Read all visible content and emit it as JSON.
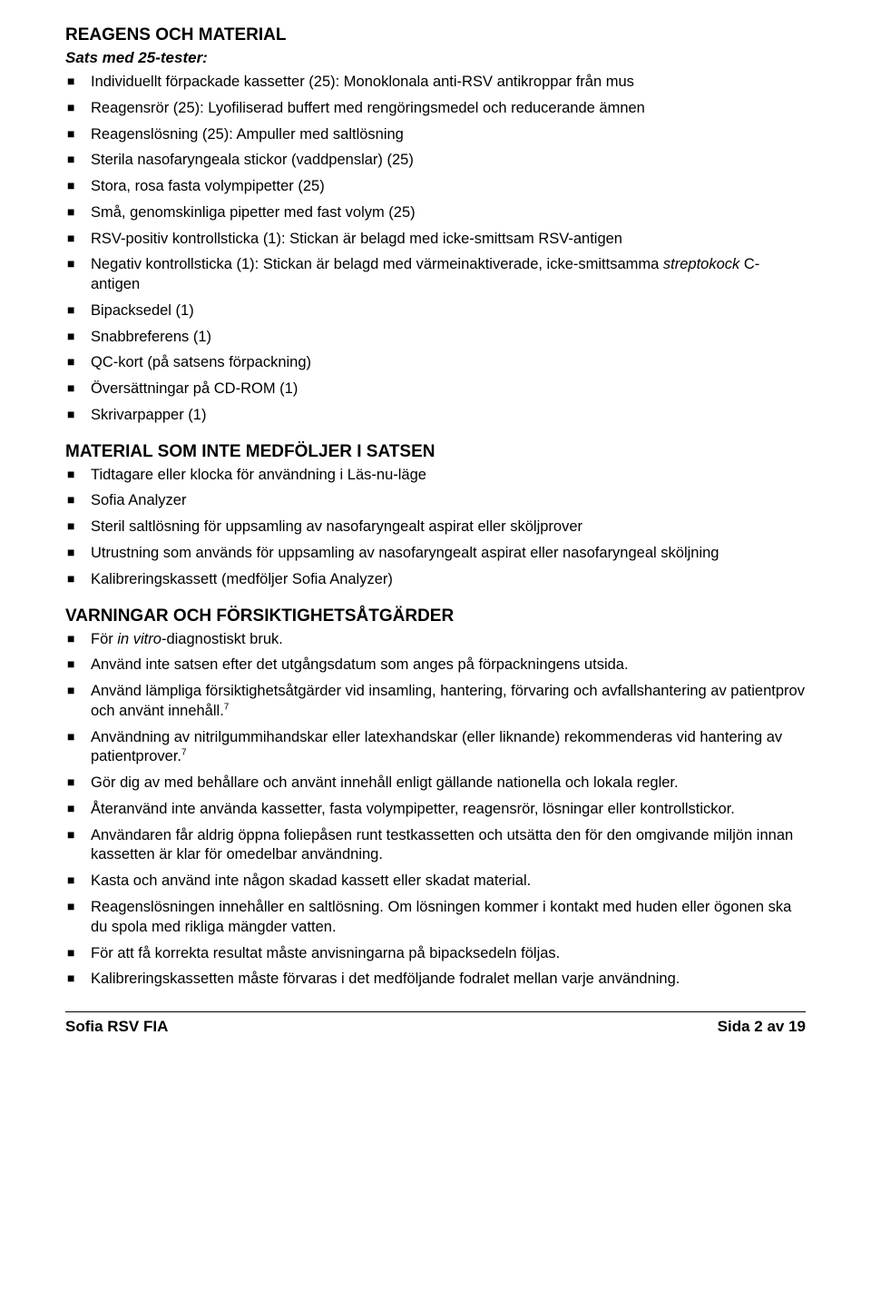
{
  "section1": {
    "title": "REAGENS OCH MATERIAL",
    "subtitle": "Sats med 25-tester:",
    "items": [
      "Individuellt förpackade kassetter (25): Monoklonala anti-RSV antikroppar från mus",
      "Reagensrör (25): Lyofiliserad buffert med rengöringsmedel och reducerande ämnen",
      "Reagenslösning (25): Ampuller med saltlösning",
      "Sterila nasofaryngeala stickor (vaddpenslar) (25)",
      "Stora, rosa fasta volympipetter (25)",
      "Små, genomskinliga pipetter med fast volym (25)",
      "RSV-positiv kontrollsticka (1): Stickan är belagd med icke-smittsam RSV-antigen",
      "Negativ kontrollsticka (1): Stickan är belagd med värmeinaktiverade, icke-smittsamma <span class=\"ital\">streptokock</span> C-antigen",
      "Bipacksedel (1)",
      "Snabbreferens (1)",
      "QC-kort (på satsens förpackning)",
      "Översättningar på CD-ROM (1)",
      "Skrivarpapper (1)"
    ]
  },
  "section2": {
    "title": "MATERIAL SOM INTE MEDFÖLJER I SATSEN",
    "items": [
      "Tidtagare eller klocka för användning i Läs-nu-läge",
      "Sofia Analyzer",
      "Steril saltlösning för uppsamling av nasofaryngealt aspirat eller sköljprover",
      "Utrustning som används för uppsamling av nasofaryngealt aspirat eller nasofaryngeal sköljning",
      "Kalibreringskassett (medföljer Sofia Analyzer)"
    ]
  },
  "section3": {
    "title": "VARNINGAR OCH FÖRSIKTIGHETSÅTGÄRDER",
    "items": [
      "För <span class=\"ital\">in vitro</span>-diagnostiskt bruk.",
      "Använd inte satsen efter det utgångsdatum som anges på förpackningens utsida.",
      "Använd lämpliga försiktighetsåtgärder vid insamling, hantering, förvaring och avfallshantering av patientprov och använt innehåll.<sup>7</sup>",
      "Användning av nitrilgummihandskar eller latexhandskar (eller liknande) rekommenderas vid hantering av patientprover.<sup>7</sup>",
      "Gör dig av med behållare och använt innehåll enligt gällande nationella och lokala regler.",
      "Återanvänd inte använda kassetter, fasta volympipetter, reagensrör, lösningar eller kontrollstickor.",
      "Användaren får aldrig öppna foliepåsen runt testkassetten och utsätta den för den omgivande miljön innan kassetten är klar för omedelbar användning.",
      "Kasta och använd inte någon skadad kassett eller skadat material.",
      "Reagenslösningen innehåller en saltlösning. Om lösningen kommer i kontakt med huden eller ögonen ska du spola med rikliga mängder vatten.",
      "För att få korrekta resultat måste anvisningarna på bipacksedeln följas.",
      "Kalibreringskassetten måste förvaras i det medföljande fodralet mellan varje användning."
    ]
  },
  "footer": {
    "left": "Sofia RSV FIA",
    "right": "Sida 2 av 19"
  }
}
